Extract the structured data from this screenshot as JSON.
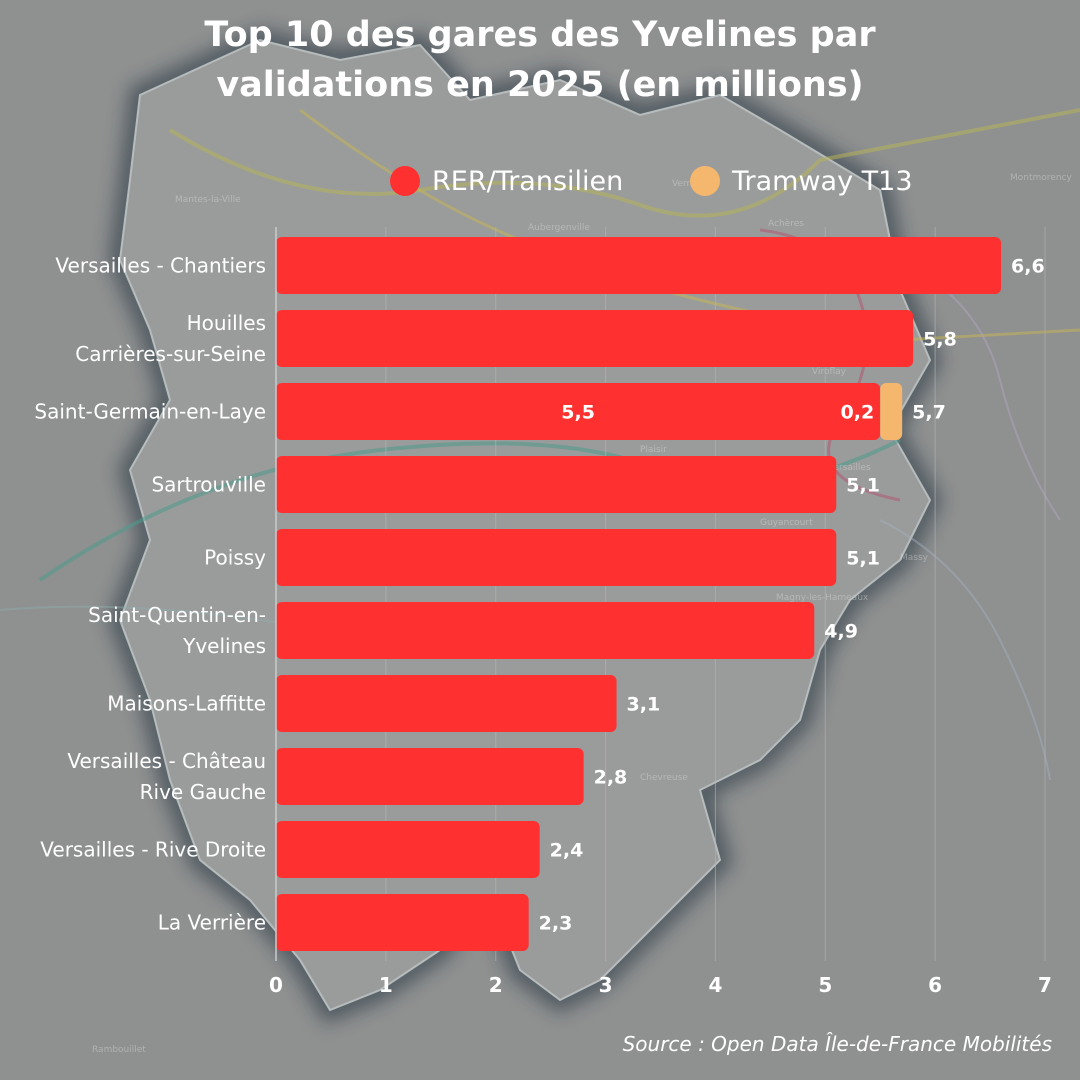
{
  "title": [
    "Top 10 des gares des Yvelines par",
    "validations en 2025 (en millions)"
  ],
  "source": "Source : Open Data Île-de-France Mobilités",
  "colors": {
    "background": "#8f9090",
    "rer": "#ff3030",
    "tram": "#f5b66e",
    "text": "#ffffff"
  },
  "map_labels": [
    "Mantes-la-Ville",
    "Aubergenville",
    "Verneuil",
    "Achères",
    "Plaisir",
    "Guyancourt",
    "Magny-les-Hameaux",
    "Versailles",
    "Viroflay",
    "Montmorency",
    "Rambouillet",
    "Chevreuse",
    "Massy"
  ],
  "chart_data": {
    "type": "bar",
    "orientation": "horizontal",
    "stacked": true,
    "title": "Top 10 des gares des Yvelines par validations en 2025 (en millions)",
    "legend_position": "top",
    "grid": true,
    "xlim": [
      0,
      7
    ],
    "x_ticks": [
      "0",
      "1",
      "2",
      "3",
      "4",
      "5",
      "6",
      "7"
    ],
    "categories": [
      [
        "Versailles - Chantiers"
      ],
      [
        "Houilles",
        "Carrières-sur-Seine"
      ],
      [
        "Saint-Germain-en-Laye"
      ],
      [
        "Sartrouville"
      ],
      [
        "Poissy"
      ],
      [
        "Saint-Quentin-en-",
        "Yvelines"
      ],
      [
        "Maisons-Laffitte"
      ],
      [
        "Versailles - Château",
        "Rive Gauche"
      ],
      [
        "Versailles - Rive Droite"
      ],
      [
        "La Verrière"
      ]
    ],
    "series": [
      {
        "name": "RER/Transilien",
        "color": "#ff3030",
        "values": [
          6.6,
          5.8,
          5.5,
          5.1,
          5.1,
          4.9,
          3.1,
          2.8,
          2.4,
          2.3
        ],
        "segment_labels": [
          null,
          null,
          "5,5",
          null,
          null,
          null,
          null,
          null,
          null,
          null
        ]
      },
      {
        "name": "Tramway T13",
        "color": "#f5b66e",
        "values": [
          0,
          0,
          0.2,
          0,
          0,
          0,
          0,
          0,
          0,
          0
        ],
        "segment_labels": [
          null,
          null,
          "0,2",
          null,
          null,
          null,
          null,
          null,
          null,
          null
        ]
      }
    ],
    "totals": [
      6.6,
      5.8,
      5.7,
      5.1,
      5.1,
      4.9,
      3.1,
      2.8,
      2.4,
      2.3
    ],
    "total_labels": [
      "6,6",
      "5,8",
      "5,7",
      "5,1",
      "5,1",
      "4,9",
      "3,1",
      "2,8",
      "2,4",
      "2,3"
    ]
  }
}
